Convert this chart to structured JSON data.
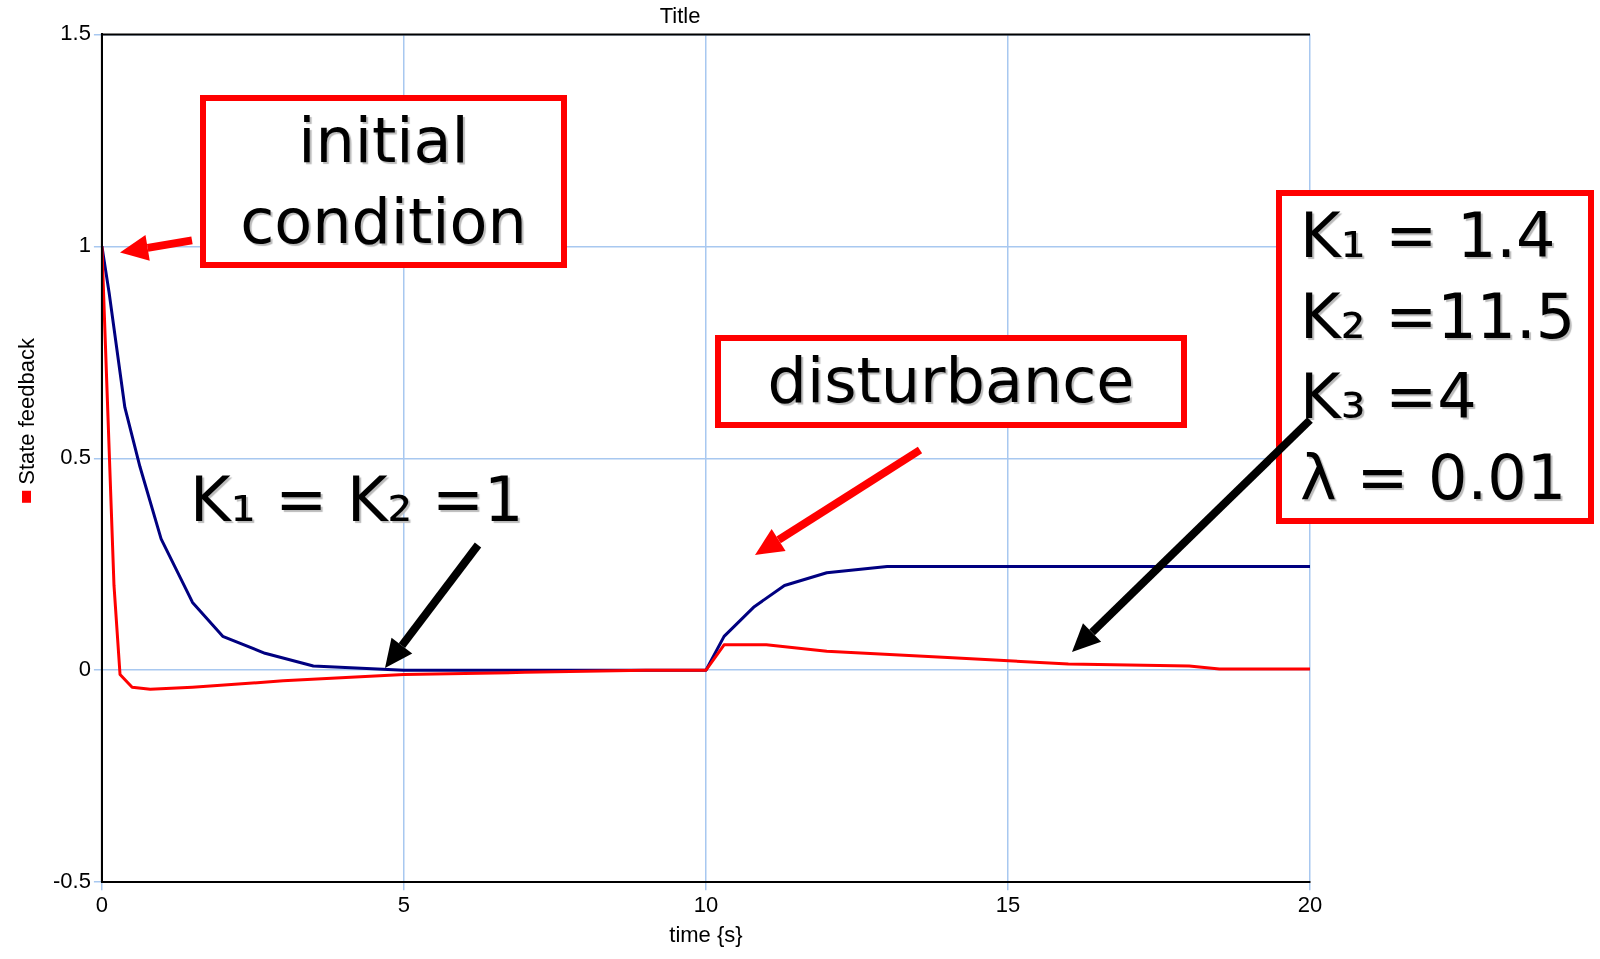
{
  "chart_data": {
    "type": "line",
    "title": "Title",
    "xlabel": "time {s}",
    "xlim": [
      0,
      20
    ],
    "xticks": [
      0,
      5,
      10,
      15,
      20
    ],
    "ylim": [
      -0.5,
      1.5
    ],
    "yticks": [
      -0.5,
      0,
      0.5,
      1,
      1.5
    ],
    "grid": true,
    "legend": "left",
    "marker": "none",
    "line_style": "solid",
    "series": [
      {
        "name": "State feedback",
        "color": "#ff0000",
        "x": [
          0,
          0.1,
          0.2,
          0.3,
          0.5,
          0.8,
          1.5,
          3,
          5,
          7,
          9,
          10,
          10.3,
          11,
          12,
          14,
          16,
          18,
          18.5,
          20
        ],
        "values": [
          1,
          0.6,
          0.2,
          -0.01,
          -0.04,
          -0.045,
          -0.04,
          -0.025,
          -0.01,
          -0.005,
          0,
          0,
          0.06,
          0.06,
          0.045,
          0.03,
          0.015,
          0.01,
          0.003,
          0.003
        ]
      },
      {
        "color": "#000080",
        "x": [
          0,
          0.12,
          0.38,
          0.63,
          0.98,
          1.5,
          2,
          2.7,
          3.5,
          5,
          10,
          10.3,
          10.8,
          11.3,
          12,
          13,
          20
        ],
        "values": [
          1,
          0.89,
          0.62,
          0.48,
          0.31,
          0.16,
          0.08,
          0.04,
          0.01,
          0,
          0,
          0.08,
          0.15,
          0.2,
          0.23,
          0.245,
          0.245
        ]
      }
    ],
    "annotations": [
      "initial condition",
      "disturbance",
      "K₁ = K₂ =1",
      "K₁ = 1.4\nK₂ =11.5\nK₃ =4\nλ = 0.01"
    ]
  }
}
